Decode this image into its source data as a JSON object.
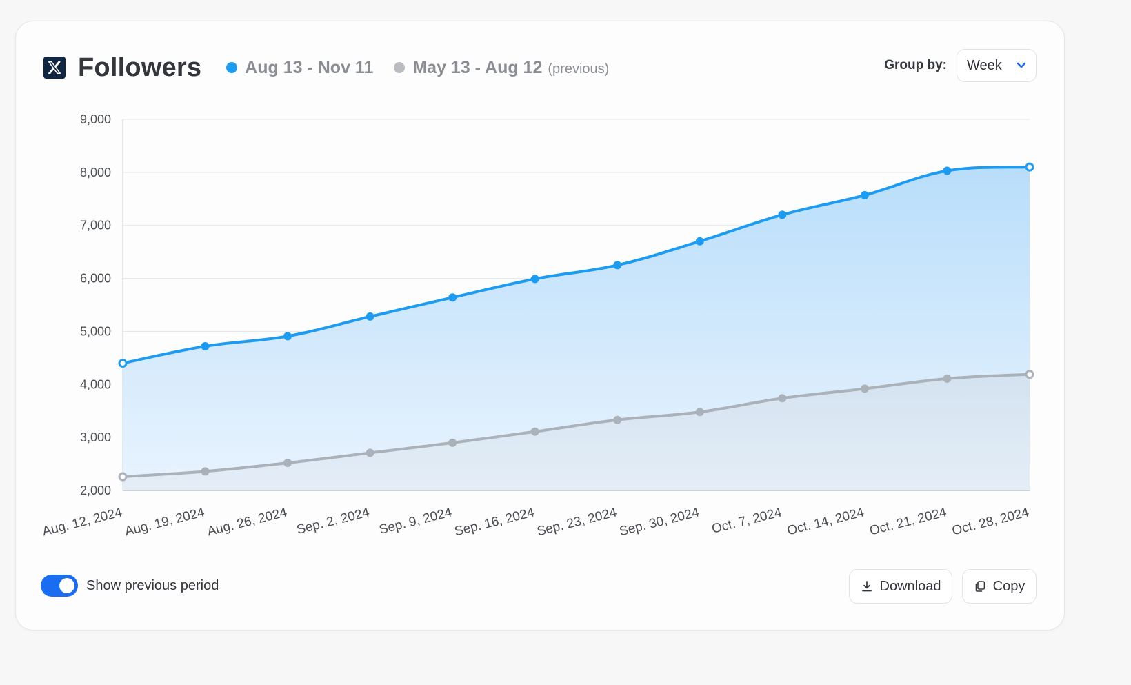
{
  "card": {
    "title": "Followers",
    "legend": [
      {
        "label": "Aug 13 - Nov 11",
        "sub": "",
        "color": "#1d9bf0"
      },
      {
        "label": "May 13 - Aug 12",
        "sub": "(previous)",
        "color": "#b9bcc0"
      }
    ],
    "group_by": {
      "label": "Group by:",
      "value": "Week"
    },
    "toggle": {
      "label": "Show previous period",
      "on": true
    },
    "buttons": {
      "download": "Download",
      "copy": "Copy"
    }
  },
  "chart_data": {
    "type": "area",
    "categories": [
      "Aug. 12, 2024",
      "Aug. 19, 2024",
      "Aug. 26, 2024",
      "Sep. 2, 2024",
      "Sep. 9, 2024",
      "Sep. 16, 2024",
      "Sep. 23, 2024",
      "Sep. 30, 2024",
      "Oct. 7, 2024",
      "Oct. 14, 2024",
      "Oct. 21, 2024",
      "Oct. 28, 2024"
    ],
    "series": [
      {
        "name": "Aug 13 - Nov 11",
        "color": "#1d9bf0",
        "values": [
          4400,
          4720,
          4910,
          5280,
          5640,
          5990,
          6250,
          6700,
          7200,
          7570,
          8030,
          8100
        ]
      },
      {
        "name": "May 13 - Aug 12",
        "color": "#b9bcc0",
        "values": [
          2260,
          2360,
          2520,
          2710,
          2900,
          3110,
          3330,
          3480,
          3740,
          3920,
          4110,
          4190
        ]
      }
    ],
    "ylim": [
      2000,
      9000
    ],
    "yticks": [
      "2,000",
      "3,000",
      "4,000",
      "5,000",
      "6,000",
      "7,000",
      "8,000",
      "9,000"
    ],
    "ytick_values": [
      2000,
      3000,
      4000,
      5000,
      6000,
      7000,
      8000,
      9000
    ],
    "grid": true
  }
}
